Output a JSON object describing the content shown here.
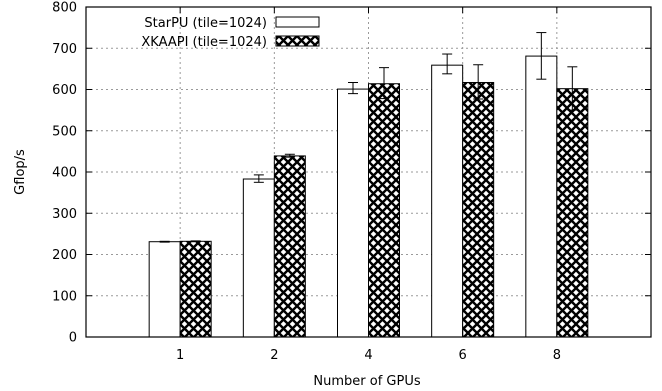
{
  "chart_data": {
    "type": "bar",
    "title": "",
    "xlabel": "Number of GPUs",
    "ylabel": "Gflop/s",
    "categories": [
      "1",
      "2",
      "4",
      "6",
      "8"
    ],
    "ylim": [
      0,
      800
    ],
    "yticks": [
      0,
      100,
      200,
      300,
      400,
      500,
      600,
      700,
      800
    ],
    "grid": true,
    "legend_position": "top-left",
    "series": [
      {
        "name": "StarPU (tile=1024)",
        "fill": "#ffffff",
        "pattern": "none",
        "values": [
          231,
          383,
          601,
          659,
          681
        ],
        "err_low": [
          230,
          375,
          590,
          638,
          625
        ],
        "err_high": [
          232,
          393,
          617,
          686,
          738
        ]
      },
      {
        "name": "XKAAPI (tile=1024)",
        "fill": "#000000",
        "pattern": "crosshatch",
        "values": [
          232,
          439,
          614,
          617,
          602
        ],
        "err_low": [
          231,
          436,
          578,
          577,
          550
        ],
        "err_high": [
          233,
          443,
          653,
          660,
          655
        ]
      }
    ]
  }
}
